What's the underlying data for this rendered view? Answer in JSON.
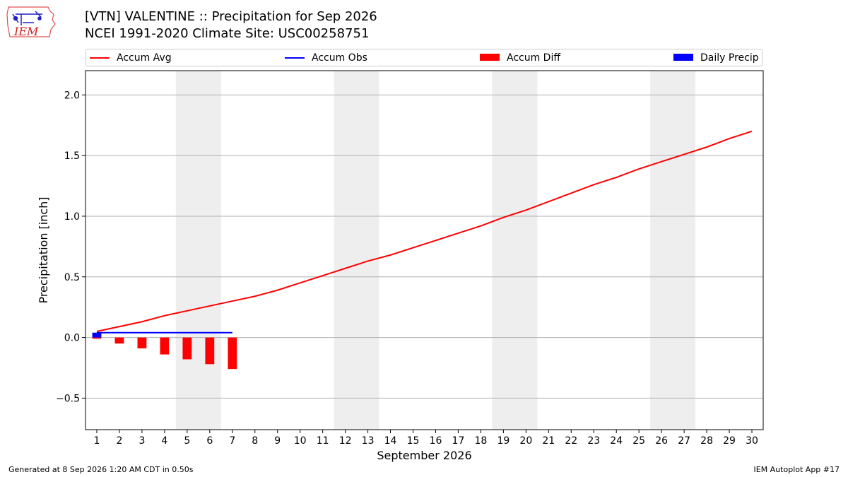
{
  "header": {
    "title_line1": "[VTN] VALENTINE :: Precipitation for Sep 2026",
    "title_line2": "NCEI 1991-2020 Climate Site: USC00258751",
    "logo_text": "IEM"
  },
  "legend": {
    "items": [
      {
        "label": "Accum Avg",
        "kind": "line",
        "color": "#ff0000"
      },
      {
        "label": "Accum Obs",
        "kind": "line",
        "color": "#0000ff"
      },
      {
        "label": "Accum Diff",
        "kind": "rect",
        "color": "#ff0000"
      },
      {
        "label": "Daily Precip",
        "kind": "rect",
        "color": "#0000ff"
      }
    ]
  },
  "footer": {
    "left": "Generated at 8 Sep 2026 1:20 AM CDT in 0.50s",
    "right": "IEM Autoplot App #17"
  },
  "chart_data": {
    "type": "line",
    "xlabel": "September 2026",
    "ylabel": "Precipitation [inch]",
    "x": [
      1,
      2,
      3,
      4,
      5,
      6,
      7,
      8,
      9,
      10,
      11,
      12,
      13,
      14,
      15,
      16,
      17,
      18,
      19,
      20,
      21,
      22,
      23,
      24,
      25,
      26,
      27,
      28,
      29,
      30
    ],
    "xlim": [
      0.5,
      30.5
    ],
    "ylim": [
      -0.76,
      2.2
    ],
    "yticks": [
      -0.5,
      0.0,
      0.5,
      1.0,
      1.5,
      2.0
    ],
    "ytick_labels": [
      "−0.5",
      "0.0",
      "0.5",
      "1.0",
      "1.5",
      "2.0"
    ],
    "grid": "horizontal",
    "weekend_shading": [
      [
        4.5,
        6.5
      ],
      [
        11.5,
        13.5
      ],
      [
        18.5,
        20.5
      ],
      [
        25.5,
        27.5
      ]
    ],
    "series": [
      {
        "name": "Accum Avg",
        "kind": "line",
        "color": "#ff0000",
        "x": [
          1,
          2,
          3,
          4,
          5,
          6,
          7,
          8,
          9,
          10,
          11,
          12,
          13,
          14,
          15,
          16,
          17,
          18,
          19,
          20,
          21,
          22,
          23,
          24,
          25,
          26,
          27,
          28,
          29,
          30
        ],
        "values": [
          0.05,
          0.09,
          0.13,
          0.18,
          0.22,
          0.26,
          0.3,
          0.34,
          0.39,
          0.45,
          0.51,
          0.57,
          0.63,
          0.68,
          0.74,
          0.8,
          0.86,
          0.92,
          0.99,
          1.05,
          1.12,
          1.19,
          1.26,
          1.32,
          1.39,
          1.45,
          1.51,
          1.57,
          1.64,
          1.7
        ]
      },
      {
        "name": "Accum Obs",
        "kind": "line",
        "color": "#0000ff",
        "x": [
          1,
          2,
          3,
          4,
          5,
          6,
          7
        ],
        "values": [
          0.04,
          0.04,
          0.04,
          0.04,
          0.04,
          0.04,
          0.04
        ]
      },
      {
        "name": "Accum Diff",
        "kind": "bar",
        "color": "#ff0000",
        "x": [
          1,
          2,
          3,
          4,
          5,
          6,
          7
        ],
        "values": [
          -0.01,
          -0.05,
          -0.09,
          -0.14,
          -0.18,
          -0.22,
          -0.26
        ]
      },
      {
        "name": "Daily Precip",
        "kind": "bar",
        "color": "#0000ff",
        "x": [
          1
        ],
        "values": [
          0.04
        ]
      }
    ]
  }
}
